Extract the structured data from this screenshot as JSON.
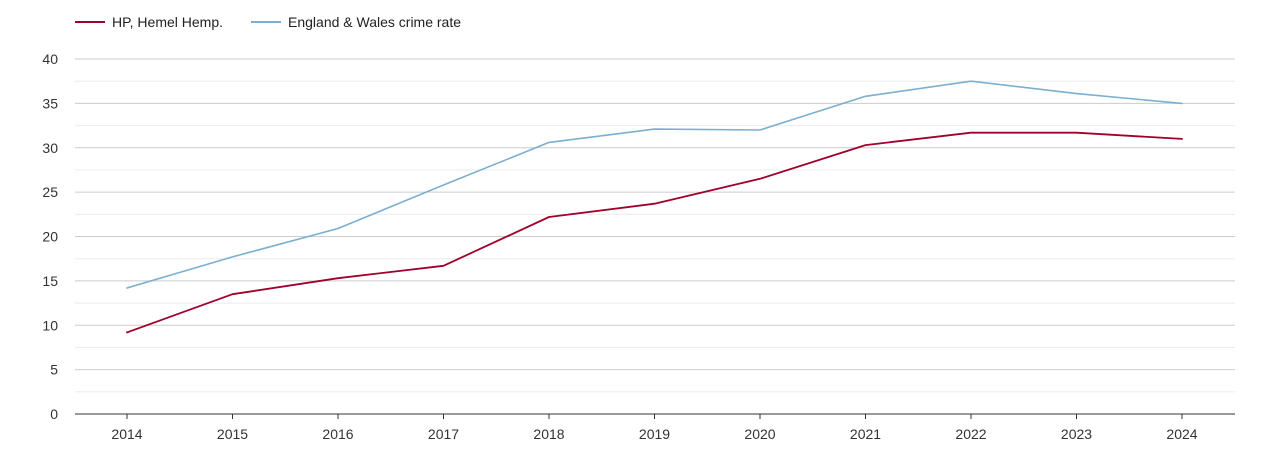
{
  "chart_data": {
    "type": "line",
    "title": "",
    "xlabel": "",
    "ylabel": "",
    "categories": [
      "2014",
      "2015",
      "2016",
      "2017",
      "2018",
      "2019",
      "2020",
      "2021",
      "2022",
      "2023",
      "2024"
    ],
    "ylim": [
      0,
      40
    ],
    "yticks": [
      0,
      5,
      10,
      15,
      20,
      25,
      30,
      35,
      40
    ],
    "grid": true,
    "legend_position": "top-left",
    "series": [
      {
        "name": "HP, Hemel Hemp.",
        "color": "#a0002a",
        "values": [
          9.2,
          13.5,
          15.3,
          16.7,
          22.2,
          23.7,
          26.5,
          30.3,
          31.7,
          31.7,
          31.0
        ]
      },
      {
        "name": "England & Wales crime rate",
        "color": "#7bafd0",
        "values": [
          14.2,
          17.7,
          20.9,
          25.8,
          30.6,
          32.1,
          32.0,
          35.8,
          37.5,
          36.1,
          35.0
        ]
      }
    ]
  }
}
